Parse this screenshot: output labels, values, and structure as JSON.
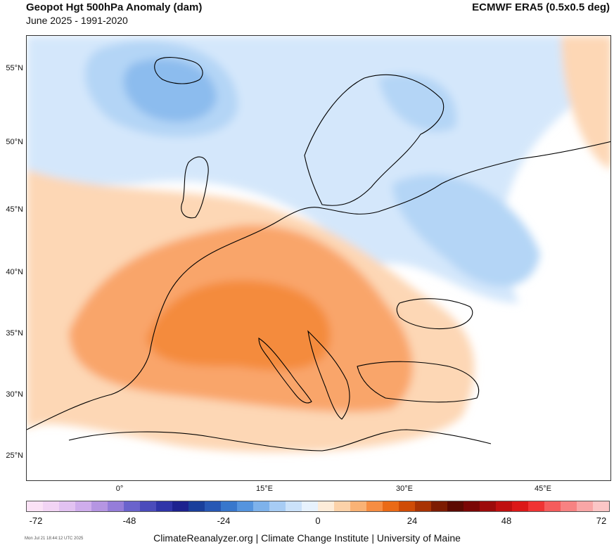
{
  "header": {
    "title": "Geopot Hgt 500hPa Anomaly (dam)",
    "subtitle": "June 2025 - 1991-2020",
    "source": "ECMWF ERA5 (0.5x0.5 deg)"
  },
  "map": {
    "lat_labels": [
      "55°N",
      "50°N",
      "45°N",
      "40°N",
      "35°N",
      "30°N",
      "25°N"
    ],
    "lon_labels": [
      "0°",
      "15°E",
      "30°E",
      "45°E"
    ],
    "anomaly_colors": {
      "strong_positive": "#f48b3c",
      "moderate_positive": "#f9a56a",
      "weak_positive": "#fdd7b5",
      "weak_negative": "#d4e7fb",
      "moderate_negative": "#b4d5f6",
      "strong_negative": "#8cbcee"
    }
  },
  "colorbar": {
    "tick_labels": [
      "-72",
      "-48",
      "-24",
      "0",
      "24",
      "48",
      "72"
    ],
    "colors": [
      "#fbe2f6",
      "#f2d4f4",
      "#e2c2f1",
      "#cfadec",
      "#b595e2",
      "#957dd9",
      "#6a63cc",
      "#4b4cbb",
      "#2f34a8",
      "#1d228f",
      "#1a3f9b",
      "#2858b4",
      "#3877cc",
      "#5594de",
      "#7eb2eb",
      "#a7ccf4",
      "#cbe2fa",
      "#e7f2fd",
      "#fdecd9",
      "#fcd2a9",
      "#f9b275",
      "#f68d42",
      "#ea6a16",
      "#cf4c06",
      "#a83303",
      "#7d1c02",
      "#5c0a02",
      "#7a0706",
      "#9c0b0b",
      "#bf1010",
      "#dc1818",
      "#ef3333",
      "#f45c5c",
      "#f78282",
      "#f9a6a6",
      "#fbc6c6"
    ]
  },
  "footer": {
    "credit": "ClimateReanalyzer.org | Climate Change Institute | University of Maine",
    "timestamp": "Mon Jul 21 18:44:12 UTC 2025"
  }
}
